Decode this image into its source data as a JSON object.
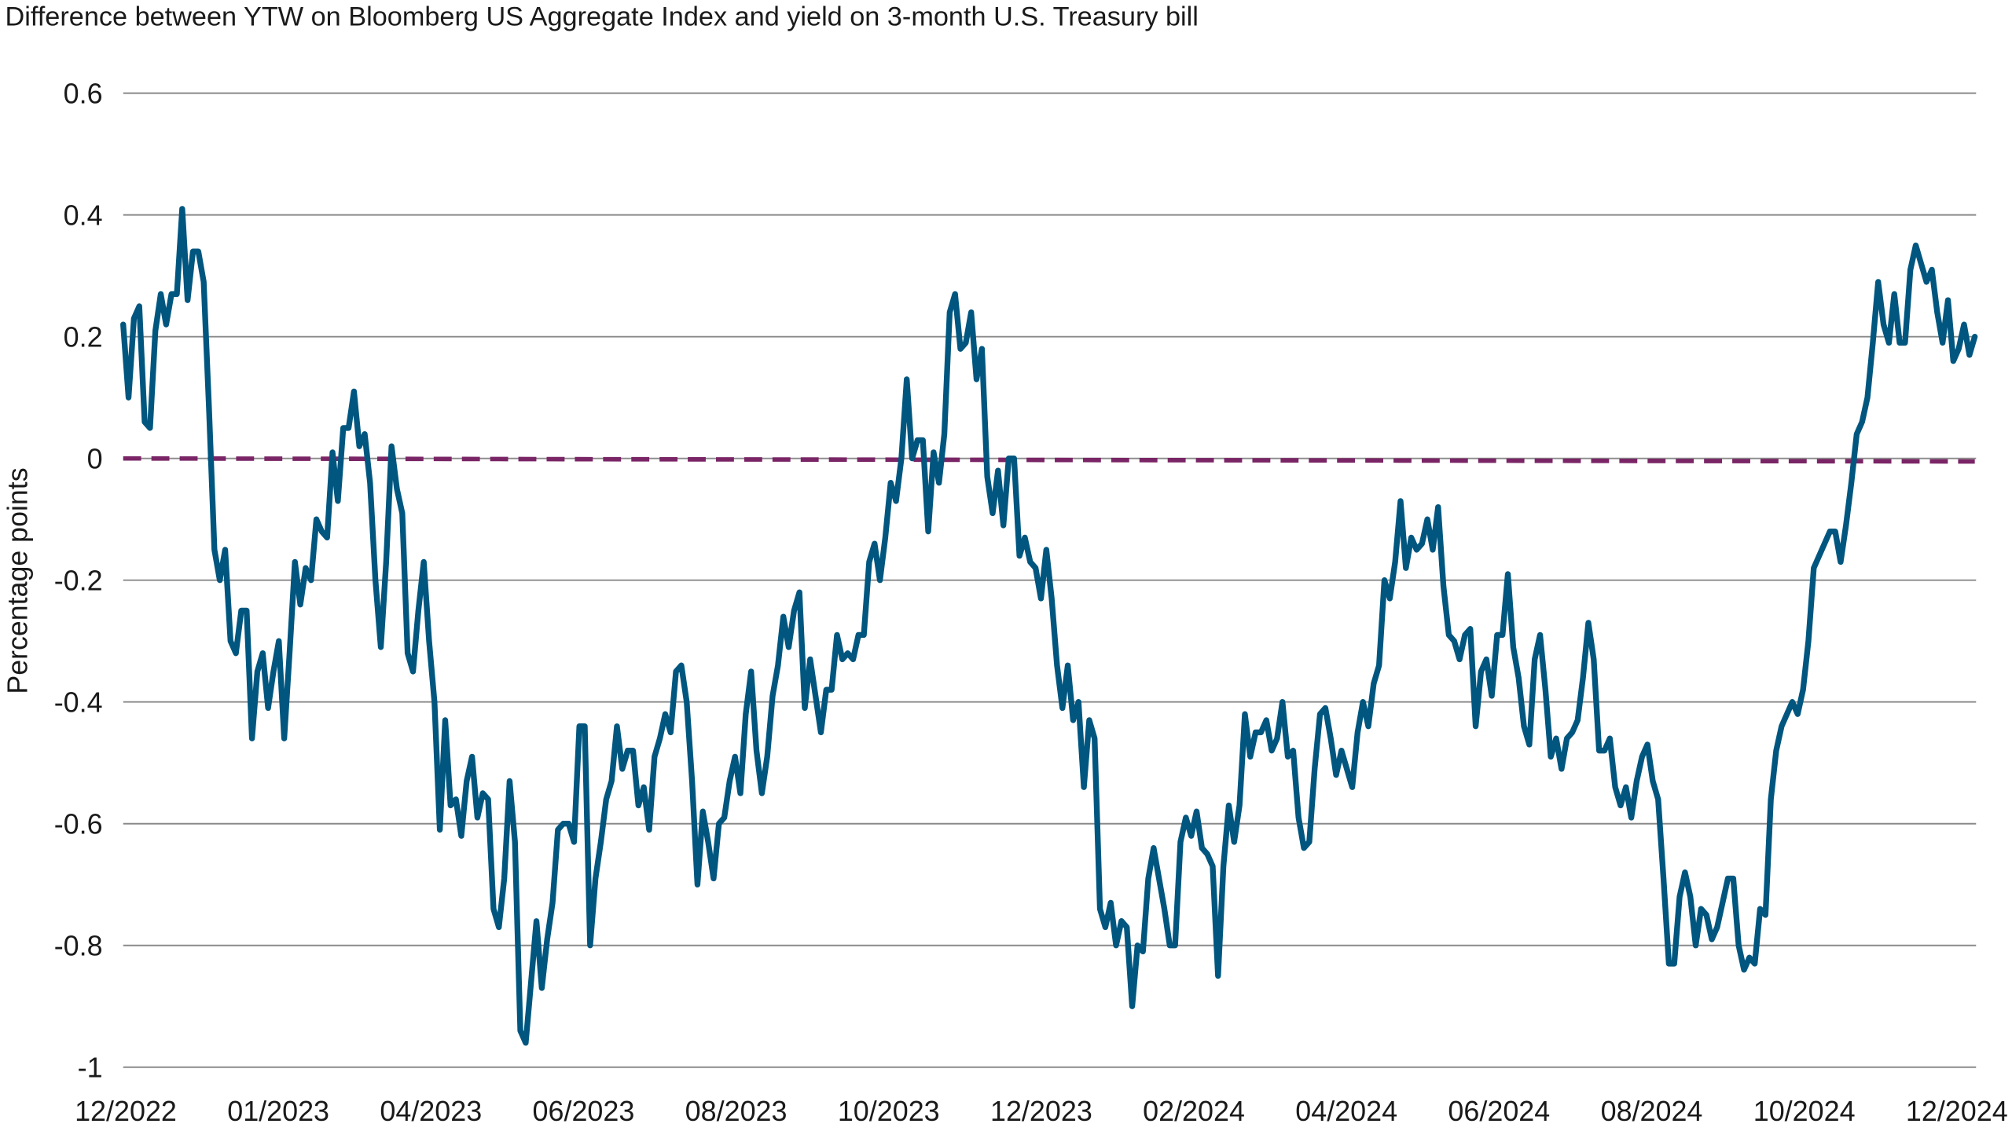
{
  "chart_data": {
    "type": "line",
    "title": "Difference between YTW on Bloomberg US Aggregate Index and yield on 3-month U.S. Treasury bill",
    "xlabel": "",
    "ylabel": "Percentage points",
    "ylim": [
      -1,
      0.6
    ],
    "yticks": [
      0.6,
      0.4,
      0.2,
      0,
      -0.2,
      -0.4,
      -0.6,
      -0.8,
      -1
    ],
    "ytick_labels": [
      "0.6",
      "0.4",
      "0.2",
      "0",
      "-0.2",
      "-0.4",
      "-0.6",
      "-0.8",
      "-1"
    ],
    "xtick_labels": [
      "12/2022",
      "01/2023",
      "04/2023",
      "06/2023",
      "08/2023",
      "10/2023",
      "12/2023",
      "02/2024",
      "04/2024",
      "06/2024",
      "08/2024",
      "10/2024",
      "12/2024"
    ],
    "grid": "horizontal",
    "legend": "none",
    "series": [
      {
        "color": "#00567f",
        "values": [
          0.22,
          0.1,
          0.23,
          0.25,
          0.06,
          0.05,
          0.21,
          0.27,
          0.22,
          0.27,
          0.27,
          0.41,
          0.26,
          0.34,
          0.34,
          0.29,
          0.08,
          -0.15,
          -0.2,
          -0.15,
          -0.3,
          -0.32,
          -0.25,
          -0.25,
          -0.46,
          -0.35,
          -0.32,
          -0.41,
          -0.35,
          -0.3,
          -0.46,
          -0.32,
          -0.17,
          -0.24,
          -0.18,
          -0.2,
          -0.1,
          -0.12,
          -0.13,
          0.01,
          -0.07,
          0.05,
          0.05,
          0.11,
          0.02,
          0.04,
          -0.04,
          -0.2,
          -0.31,
          -0.17,
          0.02,
          -0.05,
          -0.09,
          -0.32,
          -0.35,
          -0.25,
          -0.17,
          -0.3,
          -0.4,
          -0.61,
          -0.43,
          -0.57,
          -0.56,
          -0.62,
          -0.53,
          -0.49,
          -0.59,
          -0.55,
          -0.56,
          -0.74,
          -0.77,
          -0.69,
          -0.53,
          -0.63,
          -0.94,
          -0.96,
          -0.86,
          -0.76,
          -0.87,
          -0.79,
          -0.73,
          -0.61,
          -0.6,
          -0.6,
          -0.63,
          -0.44,
          -0.44,
          -0.8,
          -0.69,
          -0.63,
          -0.56,
          -0.53,
          -0.44,
          -0.51,
          -0.48,
          -0.48,
          -0.57,
          -0.54,
          -0.61,
          -0.49,
          -0.46,
          -0.42,
          -0.45,
          -0.35,
          -0.34,
          -0.4,
          -0.53,
          -0.7,
          -0.58,
          -0.63,
          -0.69,
          -0.6,
          -0.59,
          -0.53,
          -0.49,
          -0.55,
          -0.42,
          -0.35,
          -0.48,
          -0.55,
          -0.49,
          -0.39,
          -0.34,
          -0.26,
          -0.31,
          -0.25,
          -0.22,
          -0.41,
          -0.33,
          -0.39,
          -0.45,
          -0.38,
          -0.38,
          -0.29,
          -0.33,
          -0.32,
          -0.33,
          -0.29,
          -0.29,
          -0.17,
          -0.14,
          -0.2,
          -0.13,
          -0.04,
          -0.07,
          0.0,
          0.13,
          0.0,
          0.03,
          0.03,
          -0.12,
          0.01,
          -0.04,
          0.04,
          0.24,
          0.27,
          0.18,
          0.19,
          0.24,
          0.13,
          0.18,
          -0.03,
          -0.09,
          -0.02,
          -0.11,
          0.0,
          0.0,
          -0.16,
          -0.13,
          -0.17,
          -0.18,
          -0.23,
          -0.15,
          -0.23,
          -0.34,
          -0.41,
          -0.34,
          -0.43,
          -0.4,
          -0.54,
          -0.43,
          -0.46,
          -0.74,
          -0.77,
          -0.73,
          -0.8,
          -0.76,
          -0.77,
          -0.9,
          -0.8,
          -0.81,
          -0.69,
          -0.64,
          -0.69,
          -0.74,
          -0.8,
          -0.8,
          -0.63,
          -0.59,
          -0.62,
          -0.58,
          -0.64,
          -0.65,
          -0.67,
          -0.85,
          -0.67,
          -0.57,
          -0.63,
          -0.57,
          -0.42,
          -0.49,
          -0.45,
          -0.45,
          -0.43,
          -0.48,
          -0.46,
          -0.4,
          -0.49,
          -0.48,
          -0.59,
          -0.64,
          -0.63,
          -0.51,
          -0.42,
          -0.41,
          -0.46,
          -0.52,
          -0.48,
          -0.51,
          -0.54,
          -0.45,
          -0.4,
          -0.44,
          -0.37,
          -0.34,
          -0.2,
          -0.23,
          -0.17,
          -0.07,
          -0.18,
          -0.13,
          -0.15,
          -0.14,
          -0.1,
          -0.15,
          -0.08,
          -0.21,
          -0.29,
          -0.3,
          -0.33,
          -0.29,
          -0.28,
          -0.44,
          -0.35,
          -0.33,
          -0.39,
          -0.29,
          -0.29,
          -0.19,
          -0.31,
          -0.36,
          -0.44,
          -0.47,
          -0.33,
          -0.29,
          -0.38,
          -0.49,
          -0.46,
          -0.51,
          -0.46,
          -0.45,
          -0.43,
          -0.36,
          -0.27,
          -0.33,
          -0.48,
          -0.48,
          -0.46,
          -0.54,
          -0.57,
          -0.54,
          -0.59,
          -0.53,
          -0.49,
          -0.47,
          -0.53,
          -0.56,
          -0.69,
          -0.83,
          -0.83,
          -0.72,
          -0.68,
          -0.72,
          -0.8,
          -0.74,
          -0.75,
          -0.79,
          -0.77,
          -0.73,
          -0.69,
          -0.69,
          -0.8,
          -0.84,
          -0.82,
          -0.83,
          -0.74,
          -0.75,
          -0.56,
          -0.48,
          -0.44,
          -0.42,
          -0.4,
          -0.42,
          -0.38,
          -0.3,
          -0.18,
          -0.16,
          -0.14,
          -0.12,
          -0.12,
          -0.17,
          -0.11,
          -0.04,
          0.04,
          0.06,
          0.1,
          0.19,
          0.29,
          0.22,
          0.19,
          0.27,
          0.19,
          0.19,
          0.31,
          0.35,
          0.32,
          0.29,
          0.31,
          0.24,
          0.19,
          0.26,
          0.16,
          0.18,
          0.22,
          0.17,
          0.2
        ]
      }
    ],
    "reference_line": {
      "style": "dashed",
      "color": "#7a2566",
      "start_value": 0.0,
      "end_value": -0.005
    }
  }
}
